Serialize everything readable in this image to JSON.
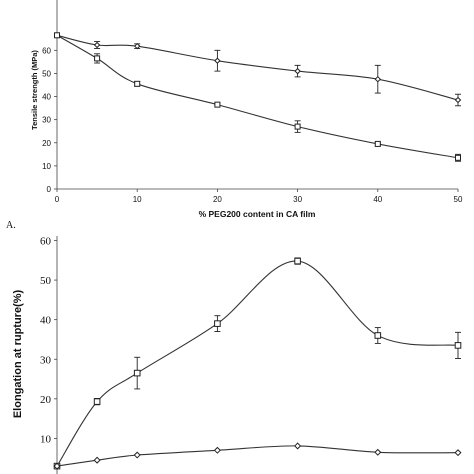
{
  "chart_data": [
    {
      "type": "line",
      "panel_label": "A.",
      "xlabel": "% PEG200 content in CA film",
      "ylabel": "Tensile strength (MPa)",
      "x": [
        0,
        5,
        10,
        20,
        30,
        40,
        50
      ],
      "xlim": [
        0,
        50
      ],
      "ylim": [
        0,
        70
      ],
      "xticks": [
        0,
        10,
        20,
        30,
        40,
        50
      ],
      "yticks": [
        0,
        10,
        20,
        30,
        40,
        50,
        60
      ],
      "series": [
        {
          "marker": "diamond",
          "values": [
            66.5,
            62.3,
            61.8,
            55.5,
            51,
            47.5,
            38.5
          ],
          "errors": [
            0,
            1.5,
            1,
            4.5,
            2.5,
            6,
            2.5
          ]
        },
        {
          "marker": "square",
          "values": [
            66.5,
            56.5,
            45.5,
            36.5,
            27,
            19.5,
            13.5
          ],
          "errors": [
            0,
            2,
            1,
            0.5,
            2.5,
            0.5,
            1.5
          ]
        }
      ],
      "grid": false,
      "legend": "none"
    },
    {
      "type": "line",
      "ylabel": "Elongation at rupture(%)",
      "x": [
        0,
        5,
        10,
        20,
        30,
        40,
        50
      ],
      "xlim": [
        0,
        50
      ],
      "ylim": [
        0,
        60
      ],
      "yticks": [
        10,
        20,
        30,
        40,
        50,
        60
      ],
      "series": [
        {
          "marker": "square",
          "values": [
            3,
            19.3,
            26.5,
            39,
            54.8,
            36,
            33.5
          ],
          "errors": [
            0.5,
            0.8,
            4,
            2,
            0.8,
            2,
            3.3
          ]
        },
        {
          "marker": "diamond",
          "values": [
            3,
            4.5,
            5.8,
            7,
            8.1,
            6.5,
            6.4
          ],
          "errors": [
            0,
            0,
            0,
            0,
            0,
            0,
            0
          ]
        }
      ],
      "grid": false,
      "legend": "none"
    }
  ]
}
